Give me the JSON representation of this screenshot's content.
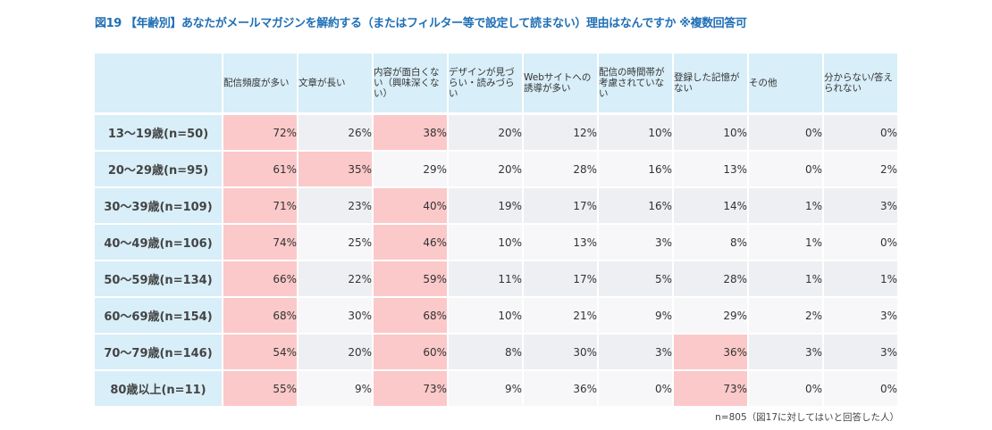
{
  "title": "図19 【年齢別】あなたがメールマガジンを解約する（またはフィルター等で設定して読まない）理由はなんですか ※複数回答可",
  "note": "n=805（図17に対してはいと回答した人）",
  "colors": {
    "header_bg": "#d8eef8",
    "highlight": "#fbc9c9",
    "title": "#1f6fb5"
  },
  "chart_data": {
    "type": "table",
    "title": "図19 【年齢別】あなたがメールマガジンを解約する（またはフィルター等で設定して読まない）理由はなんですか ※複数回答可",
    "columns": [
      "配信頻度が多い",
      "文章が長い",
      "内容が面白くない（興味深くない）",
      "デザインが見づらい・読みづらい",
      "Webサイトへの誘導が多い",
      "配信の時間帯が考慮されていない",
      "登録した記憶がない",
      "その他",
      "分からない/答えられない"
    ],
    "rows": [
      {
        "label": "13～19歳(n=50)",
        "values": [
          "72%",
          "26%",
          "38%",
          "20%",
          "12%",
          "10%",
          "10%",
          "0%",
          "0%"
        ],
        "highlight": [
          0,
          2
        ]
      },
      {
        "label": "20～29歳(n=95)",
        "values": [
          "61%",
          "35%",
          "29%",
          "20%",
          "28%",
          "16%",
          "13%",
          "0%",
          "2%"
        ],
        "highlight": [
          0,
          1
        ]
      },
      {
        "label": "30～39歳(n=109)",
        "values": [
          "71%",
          "23%",
          "40%",
          "19%",
          "17%",
          "16%",
          "14%",
          "1%",
          "3%"
        ],
        "highlight": [
          0,
          2
        ]
      },
      {
        "label": "40～49歳(n=106)",
        "values": [
          "74%",
          "25%",
          "46%",
          "10%",
          "13%",
          "3%",
          "8%",
          "1%",
          "0%"
        ],
        "highlight": [
          0,
          2
        ]
      },
      {
        "label": "50～59歳(n=134)",
        "values": [
          "66%",
          "22%",
          "59%",
          "11%",
          "17%",
          "5%",
          "28%",
          "1%",
          "1%"
        ],
        "highlight": [
          0,
          2
        ]
      },
      {
        "label": "60～69歳(n=154)",
        "values": [
          "68%",
          "30%",
          "68%",
          "10%",
          "21%",
          "9%",
          "29%",
          "2%",
          "3%"
        ],
        "highlight": [
          0,
          2
        ]
      },
      {
        "label": "70～79歳(n=146)",
        "values": [
          "54%",
          "20%",
          "60%",
          "8%",
          "30%",
          "3%",
          "36%",
          "3%",
          "3%"
        ],
        "highlight": [
          0,
          2,
          6
        ]
      },
      {
        "label": "80歳以上(n=11)",
        "values": [
          "55%",
          "9%",
          "73%",
          "9%",
          "36%",
          "0%",
          "73%",
          "0%",
          "0%"
        ],
        "highlight": [
          0,
          2,
          6
        ]
      }
    ]
  }
}
